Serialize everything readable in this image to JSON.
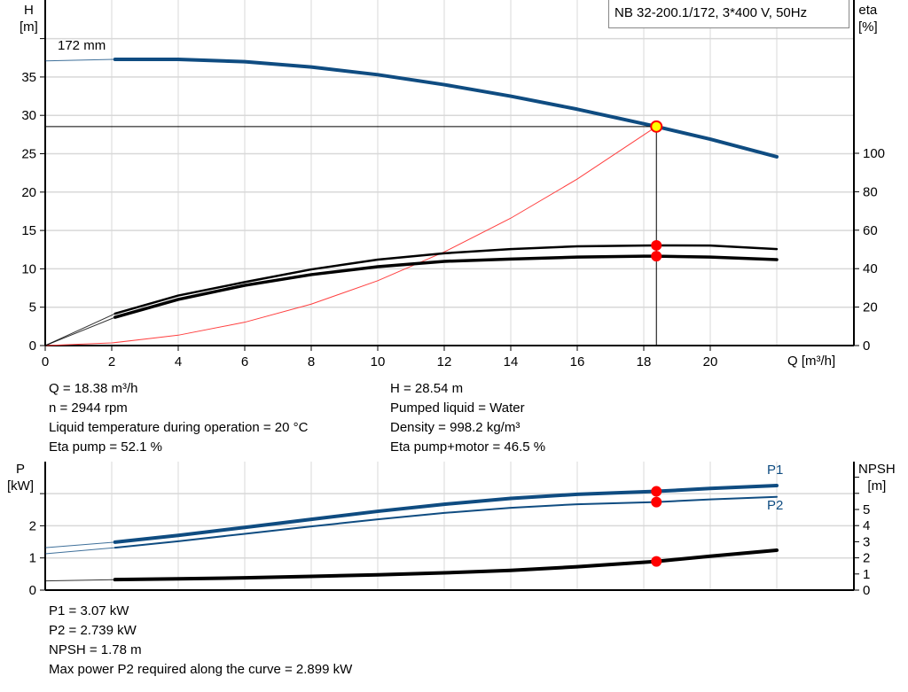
{
  "chart_data": [
    {
      "type": "line",
      "title": "NB 32-200.1/172, 3*400 V, 50Hz",
      "xlabel": "Q [m³/h]",
      "ylabel": "H",
      "ylabel_unit": "[m]",
      "y2label": "eta",
      "y2label_unit": "[%]",
      "xlim": [
        0,
        24.3
      ],
      "ylim": [
        0,
        45
      ],
      "y2lim": [
        0,
        180
      ],
      "x_ticks": [
        "0",
        "2",
        "4",
        "6",
        "8",
        "10",
        "12",
        "14",
        "16",
        "18",
        "20"
      ],
      "y_ticks": [
        "0",
        "5",
        "10",
        "15",
        "20",
        "25",
        "30",
        "35"
      ],
      "y2_ticks": [
        "0",
        "20",
        "40",
        "60",
        "80",
        "100"
      ],
      "grid": true,
      "curve_annotation": "172 mm",
      "series": [
        {
          "key": "H",
          "axis": "left",
          "color": "#0f4c81",
          "x": [
            0,
            2.1,
            4,
            6,
            8,
            10,
            12,
            14,
            16,
            18,
            18.38,
            20,
            22
          ],
          "y": [
            37.1,
            37.3,
            37.3,
            37.0,
            36.3,
            35.3,
            34.0,
            32.5,
            30.8,
            28.9,
            28.54,
            26.9,
            24.6
          ]
        },
        {
          "key": "eta_pump",
          "axis": "right",
          "color": "#000000",
          "x": [
            0,
            2.1,
            4,
            6,
            8,
            10,
            12,
            14,
            16,
            18,
            18.38,
            20,
            22
          ],
          "y": [
            0,
            16.6,
            26,
            33,
            39.6,
            44.7,
            48,
            50.2,
            51.6,
            52,
            52.1,
            52,
            50.2
          ]
        },
        {
          "key": "eta_pump_motor",
          "axis": "right",
          "color": "#000000",
          "x": [
            0,
            2.1,
            4,
            6,
            8,
            10,
            12,
            14,
            16,
            18,
            18.38,
            20,
            22
          ],
          "y": [
            0,
            14.7,
            24,
            31.3,
            36.9,
            41,
            43.8,
            45,
            46,
            46.5,
            46.5,
            46,
            44.7
          ]
        },
        {
          "key": "system",
          "axis": "left",
          "color": "#ff4040",
          "x": [
            0,
            2,
            4,
            6,
            8,
            10,
            12,
            14,
            16,
            18.38
          ],
          "y": [
            0,
            0.34,
            1.35,
            3.04,
            5.4,
            8.45,
            12.2,
            16.6,
            21.7,
            28.54
          ]
        }
      ],
      "duty_point": {
        "Q": 18.38,
        "H": 28.54,
        "eta_pump": 52.1,
        "eta_pump_motor": 46.5
      }
    },
    {
      "type": "line",
      "ylabel": "P",
      "ylabel_unit": "[kW]",
      "y2label": "NPSH",
      "y2label_unit": "[m]",
      "xlim": [
        0,
        24.3
      ],
      "ylim": [
        0,
        4
      ],
      "y2lim": [
        0,
        8
      ],
      "y_ticks": [
        "0",
        "1",
        "2"
      ],
      "y2_ticks": [
        "0",
        "1",
        "2",
        "3",
        "4",
        "5"
      ],
      "grid": true,
      "series": [
        {
          "name": "P1",
          "axis": "left",
          "color": "#0f4c81",
          "x": [
            0,
            2.1,
            4,
            6,
            8,
            10,
            12,
            14,
            16,
            18.38,
            20,
            22
          ],
          "y": [
            1.32,
            1.49,
            1.7,
            1.95,
            2.2,
            2.45,
            2.67,
            2.85,
            2.98,
            3.07,
            3.16,
            3.25
          ]
        },
        {
          "name": "P2",
          "axis": "left",
          "color": "#0f4c81",
          "x": [
            0,
            2.1,
            4,
            6,
            8,
            10,
            12,
            14,
            16,
            18.38,
            20,
            22
          ],
          "y": [
            1.13,
            1.32,
            1.52,
            1.75,
            1.98,
            2.2,
            2.4,
            2.56,
            2.67,
            2.739,
            2.82,
            2.899
          ]
        },
        {
          "key": "NPSH",
          "axis": "right",
          "color": "#000000",
          "x": [
            0,
            2.1,
            4,
            6,
            8,
            10,
            12,
            14,
            16,
            18.38,
            20,
            22
          ],
          "y": [
            0.57,
            0.65,
            0.7,
            0.76,
            0.85,
            0.95,
            1.07,
            1.22,
            1.45,
            1.78,
            2.1,
            2.47
          ]
        }
      ],
      "duty_point": {
        "Q": 18.38,
        "P1": 3.07,
        "P2": 2.739,
        "NPSH": 1.78
      }
    }
  ],
  "info_top": {
    "left": [
      "Q = 18.38 m³/h",
      "n = 2944 rpm",
      "Liquid temperature during operation = 20 °C",
      "Eta pump = 52.1 %"
    ],
    "right": [
      "H = 28.54 m",
      "Pumped liquid = Water",
      "Density = 998.2 kg/m³",
      "Eta pump+motor = 46.5 %"
    ]
  },
  "info_bottom": [
    "P1 = 3.07 kW",
    "P2 = 2.739 kW",
    "NPSH = 1.78 m",
    "Max power P2 required along the curve = 2.899 kW"
  ]
}
